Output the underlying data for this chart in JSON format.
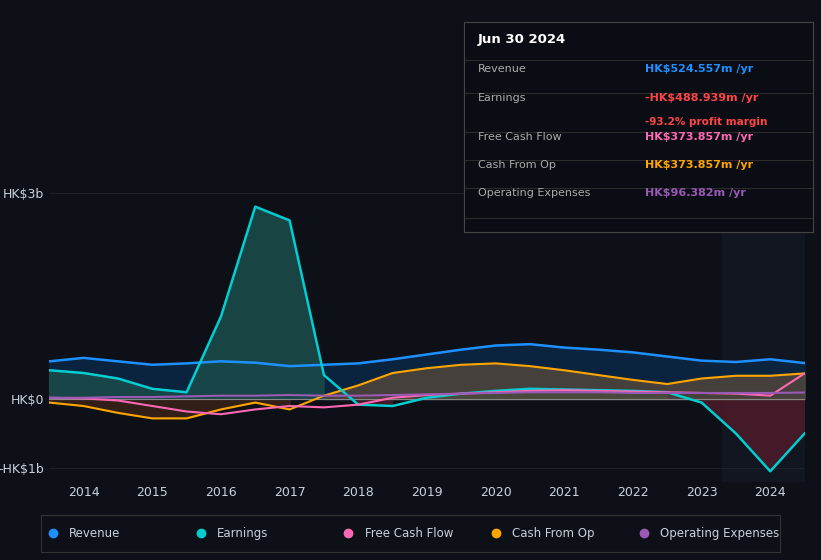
{
  "background_color": "#0d1117",
  "plot_bg_color": "#0d1117",
  "text_color": "#c9d1d9",
  "grid_color": "#21262d",
  "years": [
    2013.5,
    2014,
    2014.5,
    2015,
    2015.5,
    2016,
    2016.5,
    2017,
    2017.5,
    2018,
    2018.5,
    2019,
    2019.5,
    2020,
    2020.5,
    2021,
    2021.5,
    2022,
    2022.5,
    2023,
    2023.5,
    2024,
    2024.5
  ],
  "revenue": [
    0.55,
    0.6,
    0.55,
    0.5,
    0.52,
    0.55,
    0.53,
    0.48,
    0.5,
    0.52,
    0.58,
    0.65,
    0.72,
    0.78,
    0.8,
    0.75,
    0.72,
    0.68,
    0.62,
    0.56,
    0.54,
    0.58,
    0.525
  ],
  "earnings": [
    0.42,
    0.38,
    0.3,
    0.15,
    0.1,
    1.2,
    2.8,
    2.6,
    0.35,
    -0.08,
    -0.1,
    0.02,
    0.08,
    0.12,
    0.15,
    0.14,
    0.13,
    0.12,
    0.1,
    -0.05,
    -0.5,
    -1.05,
    -0.5
  ],
  "free_cash_flow": [
    0.02,
    0.01,
    -0.02,
    -0.1,
    -0.18,
    -0.22,
    -0.15,
    -0.1,
    -0.12,
    -0.08,
    0.02,
    0.06,
    0.08,
    0.1,
    0.12,
    0.13,
    0.12,
    0.11,
    0.1,
    0.09,
    0.08,
    0.05,
    0.374
  ],
  "cash_from_op": [
    -0.05,
    -0.1,
    -0.2,
    -0.28,
    -0.28,
    -0.15,
    -0.05,
    -0.15,
    0.05,
    0.2,
    0.38,
    0.45,
    0.5,
    0.52,
    0.48,
    0.42,
    0.35,
    0.28,
    0.22,
    0.3,
    0.34,
    0.34,
    0.374
  ],
  "operating_expenses": [
    0.02,
    0.02,
    0.03,
    0.03,
    0.04,
    0.05,
    0.05,
    0.06,
    0.05,
    0.05,
    0.06,
    0.07,
    0.08,
    0.09,
    0.1,
    0.1,
    0.1,
    0.09,
    0.09,
    0.09,
    0.09,
    0.09,
    0.096
  ],
  "revenue_color": "#1e90ff",
  "earnings_color": "#00ced1",
  "earnings_fill_pos": "#1a4a4a",
  "earnings_fill_neg": "#4a1a2a",
  "free_cash_flow_color": "#ff69b4",
  "cash_from_op_color": "#ffa500",
  "cash_from_op_fill": "#5a4a3a",
  "operating_expenses_color": "#9b59b6",
  "revenue_fill": "#0a2a4a",
  "ylim_min": -1.2,
  "ylim_max": 3.2,
  "yticks": [
    -1.0,
    0.0,
    3.0
  ],
  "ytick_labels": [
    "-HK$1b",
    "HK$0",
    "HK$3b"
  ],
  "xtick_years": [
    2014,
    2015,
    2016,
    2017,
    2018,
    2019,
    2020,
    2021,
    2022,
    2023,
    2024
  ],
  "info_box": {
    "title": "Jun 30 2024",
    "rows": [
      {
        "label": "Revenue",
        "value": "HK$524.557m",
        "value_color": "#1e90ff",
        "suffix": " /yr",
        "extra": null,
        "extra_color": null
      },
      {
        "label": "Earnings",
        "value": "-HK$488.939m",
        "value_color": "#ff4444",
        "suffix": " /yr",
        "extra": "-93.2% profit margin",
        "extra_color": "#ff4444"
      },
      {
        "label": "Free Cash Flow",
        "value": "HK$373.857m",
        "value_color": "#ff69b4",
        "suffix": " /yr",
        "extra": null,
        "extra_color": null
      },
      {
        "label": "Cash From Op",
        "value": "HK$373.857m",
        "value_color": "#ffa500",
        "suffix": " /yr",
        "extra": null,
        "extra_color": null
      },
      {
        "label": "Operating Expenses",
        "value": "HK$96.382m",
        "value_color": "#9b59b6",
        "suffix": " /yr",
        "extra": null,
        "extra_color": null
      }
    ]
  },
  "legend_items": [
    {
      "label": "Revenue",
      "color": "#1e90ff"
    },
    {
      "label": "Earnings",
      "color": "#00ced1"
    },
    {
      "label": "Free Cash Flow",
      "color": "#ff69b4"
    },
    {
      "label": "Cash From Op",
      "color": "#ffa500"
    },
    {
      "label": "Operating Expenses",
      "color": "#9b59b6"
    }
  ]
}
